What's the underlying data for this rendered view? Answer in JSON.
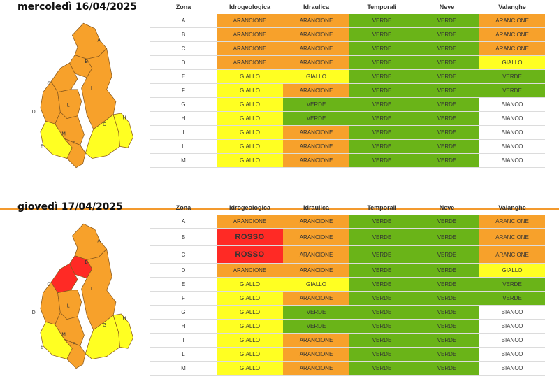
{
  "colors": {
    "ARANCIONE": "#f7a12b",
    "GIALLO": "#ffff22",
    "VERDE": "#6ab418",
    "BIANCO": "#ffffff",
    "ROSSO": "#ff2a25",
    "divider": "#f39a2e"
  },
  "headers": [
    "Zona",
    "Idrogeologica",
    "Idraulica",
    "Temporali",
    "Neve",
    "Valanghe"
  ],
  "days": [
    {
      "title": "mercoledì 16/04/2025",
      "map_zones": {
        "A": "ARANCIONE",
        "B": "ARANCIONE",
        "C": "ARANCIONE",
        "D": "ARANCIONE",
        "E": "GIALLO",
        "F": "ARANCIONE",
        "G": "GIALLO",
        "H": "GIALLO",
        "I": "ARANCIONE",
        "L": "ARANCIONE",
        "M": "ARANCIONE"
      },
      "rows": [
        {
          "zona": "A",
          "idrogeologica": "ARANCIONE",
          "idraulica": "ARANCIONE",
          "temporali": "VERDE",
          "neve": "VERDE",
          "valanghe": "ARANCIONE"
        },
        {
          "zona": "B",
          "idrogeologica": "ARANCIONE",
          "idraulica": "ARANCIONE",
          "temporali": "VERDE",
          "neve": "VERDE",
          "valanghe": "ARANCIONE"
        },
        {
          "zona": "C",
          "idrogeologica": "ARANCIONE",
          "idraulica": "ARANCIONE",
          "temporali": "VERDE",
          "neve": "VERDE",
          "valanghe": "ARANCIONE"
        },
        {
          "zona": "D",
          "idrogeologica": "ARANCIONE",
          "idraulica": "ARANCIONE",
          "temporali": "VERDE",
          "neve": "VERDE",
          "valanghe": "GIALLO"
        },
        {
          "zona": "E",
          "idrogeologica": "GIALLO",
          "idraulica": "GIALLO",
          "temporali": "VERDE",
          "neve": "VERDE",
          "valanghe": "VERDE"
        },
        {
          "zona": "F",
          "idrogeologica": "GIALLO",
          "idraulica": "ARANCIONE",
          "temporali": "VERDE",
          "neve": "VERDE",
          "valanghe": "VERDE"
        },
        {
          "zona": "G",
          "idrogeologica": "GIALLO",
          "idraulica": "VERDE",
          "temporali": "VERDE",
          "neve": "VERDE",
          "valanghe": "BIANCO"
        },
        {
          "zona": "H",
          "idrogeologica": "GIALLO",
          "idraulica": "VERDE",
          "temporali": "VERDE",
          "neve": "VERDE",
          "valanghe": "BIANCO"
        },
        {
          "zona": "I",
          "idrogeologica": "GIALLO",
          "idraulica": "ARANCIONE",
          "temporali": "VERDE",
          "neve": "VERDE",
          "valanghe": "BIANCO"
        },
        {
          "zona": "L",
          "idrogeologica": "GIALLO",
          "idraulica": "ARANCIONE",
          "temporali": "VERDE",
          "neve": "VERDE",
          "valanghe": "BIANCO"
        },
        {
          "zona": "M",
          "idrogeologica": "GIALLO",
          "idraulica": "ARANCIONE",
          "temporali": "VERDE",
          "neve": "VERDE",
          "valanghe": "BIANCO"
        }
      ]
    },
    {
      "title": "giovedì 17/04/2025",
      "map_zones": {
        "A": "ARANCIONE",
        "B": "ROSSO",
        "C": "ROSSO",
        "D": "ARANCIONE",
        "E": "GIALLO",
        "F": "ARANCIONE",
        "G": "GIALLO",
        "H": "GIALLO",
        "I": "ARANCIONE",
        "L": "ARANCIONE",
        "M": "ARANCIONE"
      },
      "rows": [
        {
          "zona": "A",
          "idrogeologica": "ARANCIONE",
          "idraulica": "ARANCIONE",
          "temporali": "VERDE",
          "neve": "VERDE",
          "valanghe": "ARANCIONE"
        },
        {
          "zona": "B",
          "idrogeologica": "ROSSO",
          "idraulica": "ARANCIONE",
          "temporali": "VERDE",
          "neve": "VERDE",
          "valanghe": "ARANCIONE"
        },
        {
          "zona": "C",
          "idrogeologica": "ROSSO",
          "idraulica": "ARANCIONE",
          "temporali": "VERDE",
          "neve": "VERDE",
          "valanghe": "ARANCIONE"
        },
        {
          "zona": "D",
          "idrogeologica": "ARANCIONE",
          "idraulica": "ARANCIONE",
          "temporali": "VERDE",
          "neve": "VERDE",
          "valanghe": "GIALLO"
        },
        {
          "zona": "E",
          "idrogeologica": "GIALLO",
          "idraulica": "GIALLO",
          "temporali": "VERDE",
          "neve": "VERDE",
          "valanghe": "VERDE"
        },
        {
          "zona": "F",
          "idrogeologica": "GIALLO",
          "idraulica": "ARANCIONE",
          "temporali": "VERDE",
          "neve": "VERDE",
          "valanghe": "VERDE"
        },
        {
          "zona": "G",
          "idrogeologica": "GIALLO",
          "idraulica": "VERDE",
          "temporali": "VERDE",
          "neve": "VERDE",
          "valanghe": "BIANCO"
        },
        {
          "zona": "H",
          "idrogeologica": "GIALLO",
          "idraulica": "VERDE",
          "temporali": "VERDE",
          "neve": "VERDE",
          "valanghe": "BIANCO"
        },
        {
          "zona": "I",
          "idrogeologica": "GIALLO",
          "idraulica": "ARANCIONE",
          "temporali": "VERDE",
          "neve": "VERDE",
          "valanghe": "BIANCO"
        },
        {
          "zona": "L",
          "idrogeologica": "GIALLO",
          "idraulica": "ARANCIONE",
          "temporali": "VERDE",
          "neve": "VERDE",
          "valanghe": "BIANCO"
        },
        {
          "zona": "M",
          "idrogeologica": "GIALLO",
          "idraulica": "ARANCIONE",
          "temporali": "VERDE",
          "neve": "VERDE",
          "valanghe": "BIANCO"
        }
      ]
    }
  ]
}
